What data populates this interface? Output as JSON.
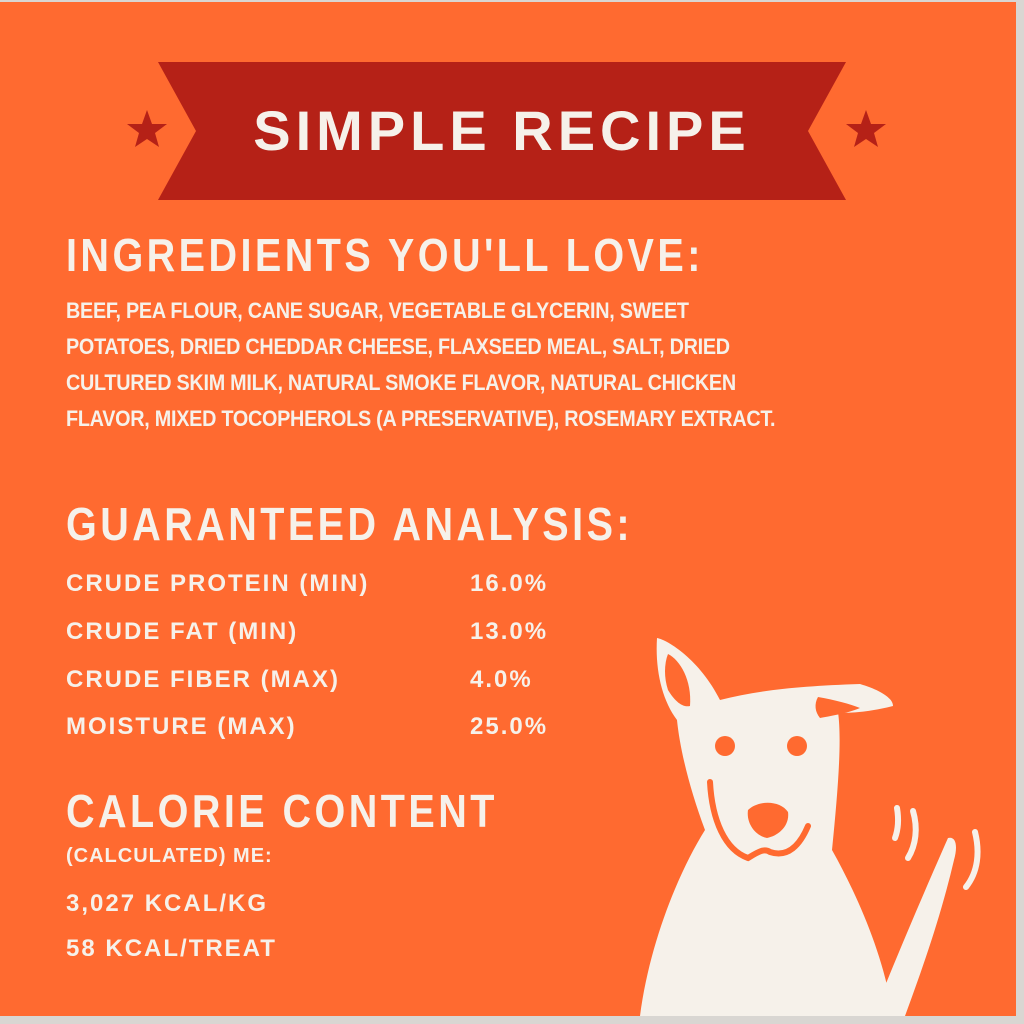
{
  "colors": {
    "background": "#ff6a30",
    "banner": "#b52117",
    "text": "#f6f1ea"
  },
  "banner": {
    "title": "SIMPLE RECIPE",
    "icons": [
      "star-icon",
      "star-icon"
    ]
  },
  "ingredients": {
    "heading": "INGREDIENTS YOU'LL LOVE:",
    "lines": [
      "BEEF, PEA FLOUR, CANE SUGAR, VEGETABLE GLYCERIN, SWEET",
      "POTATOES, DRIED CHEDDAR CHEESE, FLAXSEED MEAL, SALT, DRIED",
      "CULTURED SKIM MILK, NATURAL SMOKE FLAVOR, NATURAL CHICKEN",
      "FLAVOR, MIXED TOCOPHEROLS (A PRESERVATIVE), ROSEMARY EXTRACT."
    ]
  },
  "analysis": {
    "heading": "GUARANTEED ANALYSIS:",
    "rows": [
      {
        "label": "CRUDE PROTEIN (MIN)",
        "value": "16.0%"
      },
      {
        "label": "CRUDE FAT (MIN)",
        "value": "13.0%"
      },
      {
        "label": "CRUDE FIBER (MAX)",
        "value": "4.0%"
      },
      {
        "label": "MOISTURE (MAX)",
        "value": "25.0%"
      }
    ]
  },
  "calories": {
    "heading": "CALORIE CONTENT",
    "subheading": "(CALCULATED) ME:",
    "per_kg": "3,027 KCAL/KG",
    "per_treat": "58 KCAL/TREAT"
  },
  "illustration": {
    "icon": "dog-wagging-tail-icon"
  }
}
